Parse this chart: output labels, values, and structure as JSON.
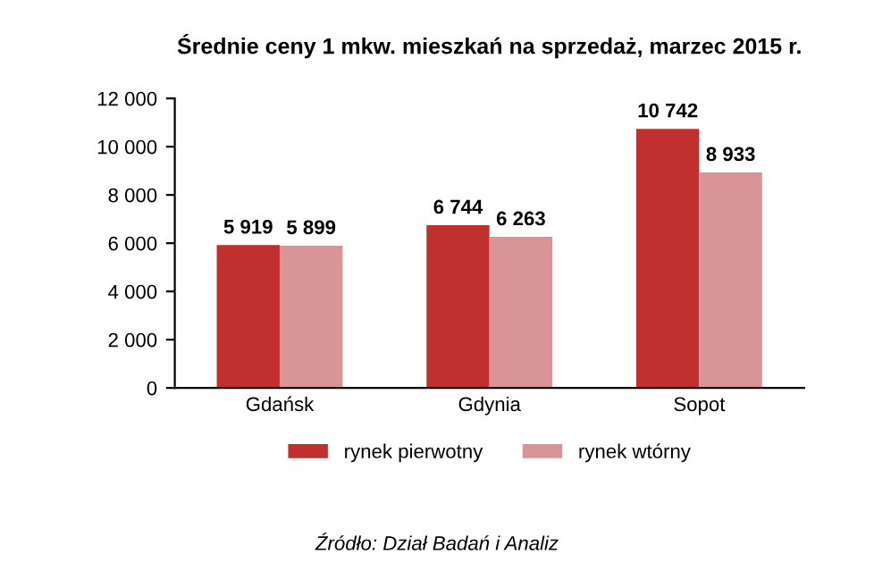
{
  "chart_data": {
    "type": "bar",
    "title": "Średnie ceny 1 mkw. mieszkań na sprzedaż, marzec 2015 r.",
    "categories": [
      "Gdańsk",
      "Gdynia",
      "Sopot"
    ],
    "series": [
      {
        "name": "rynek pierwotny",
        "color": "#c0302f",
        "values": [
          5919,
          6744,
          10742
        ],
        "value_labels": [
          "5 919",
          "6 744",
          "10 742"
        ]
      },
      {
        "name": "rynek wtórny",
        "color": "#d99595",
        "values": [
          5899,
          6263,
          8933
        ],
        "value_labels": [
          "5 899",
          "6 263",
          "8 933"
        ]
      }
    ],
    "ylim": [
      0,
      12000
    ],
    "yticks": [
      0,
      {
        "value": 2000,
        "label": "2 000"
      },
      {
        "value": 4000,
        "label": "4 000"
      },
      {
        "value": 6000,
        "label": "6 000"
      },
      {
        "value": 8000,
        "label": "8 000"
      },
      {
        "value": 10000,
        "label": "10 000"
      },
      {
        "value": 12000,
        "label": "12 000"
      }
    ],
    "grid": false,
    "legend": "bottom",
    "annotations": [
      "Źródło: Dział Badań i Analiz"
    ]
  }
}
